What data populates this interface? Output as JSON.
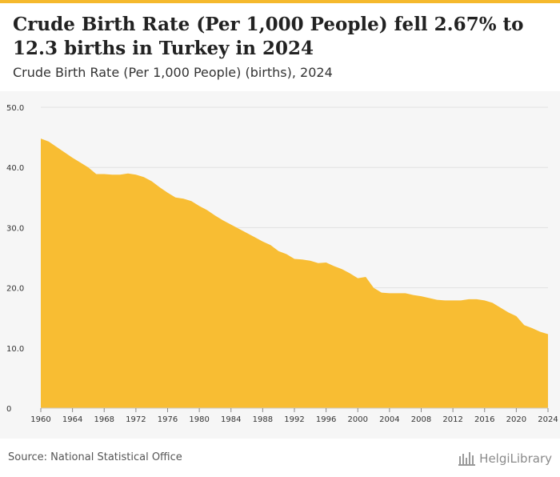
{
  "header": {
    "title": "Crude Birth Rate (Per 1,000 People) fell 2.67% to 12.3 births in Turkey in 2024",
    "subtitle": "Crude Birth Rate (Per 1,000 People) (births), 2024"
  },
  "footer": {
    "source": "Source: National Statistical Office",
    "logo_text": "HelgiLibrary"
  },
  "colors": {
    "accent": "#f5b92d",
    "area_fill": "#f8bd33",
    "plot_bg": "#f6f6f6",
    "grid": "#e2e2e2",
    "tick_text": "#333333"
  },
  "chart_data": {
    "type": "area",
    "x": [
      1960,
      1961,
      1962,
      1963,
      1964,
      1965,
      1966,
      1967,
      1968,
      1969,
      1970,
      1971,
      1972,
      1973,
      1974,
      1975,
      1976,
      1977,
      1978,
      1979,
      1980,
      1981,
      1982,
      1983,
      1984,
      1985,
      1986,
      1987,
      1988,
      1989,
      1990,
      1991,
      1992,
      1993,
      1994,
      1995,
      1996,
      1997,
      1998,
      1999,
      2000,
      2001,
      2002,
      2003,
      2004,
      2005,
      2006,
      2007,
      2008,
      2009,
      2010,
      2011,
      2012,
      2013,
      2014,
      2015,
      2016,
      2017,
      2018,
      2019,
      2020,
      2021,
      2022,
      2023,
      2024
    ],
    "values": [
      44.8,
      44.3,
      43.4,
      42.5,
      41.6,
      40.8,
      40.0,
      38.9,
      38.9,
      38.8,
      38.8,
      39.0,
      38.8,
      38.4,
      37.7,
      36.7,
      35.8,
      35.0,
      34.8,
      34.4,
      33.6,
      32.9,
      32.0,
      31.2,
      30.5,
      29.8,
      29.1,
      28.4,
      27.7,
      27.1,
      26.1,
      25.6,
      24.8,
      24.7,
      24.5,
      24.1,
      24.2,
      23.6,
      23.1,
      22.4,
      21.6,
      21.8,
      20.0,
      19.2,
      19.1,
      19.1,
      19.1,
      18.8,
      18.6,
      18.3,
      18.0,
      17.9,
      17.9,
      17.9,
      18.1,
      18.1,
      17.9,
      17.5,
      16.7,
      15.9,
      15.3,
      13.8,
      13.3,
      12.7,
      12.3
    ],
    "xticks": [
      "1960",
      "1964",
      "1968",
      "1972",
      "1976",
      "1980",
      "1984",
      "1988",
      "1992",
      "1996",
      "2000",
      "2004",
      "2008",
      "2012",
      "2016",
      "2020",
      "2024"
    ],
    "yticks": [
      "0",
      "10.0",
      "20.0",
      "30.0",
      "40.0",
      "50.0"
    ],
    "ylim": [
      0,
      50
    ],
    "xlim": [
      1960,
      2024
    ],
    "grid": true,
    "legend": "none"
  }
}
